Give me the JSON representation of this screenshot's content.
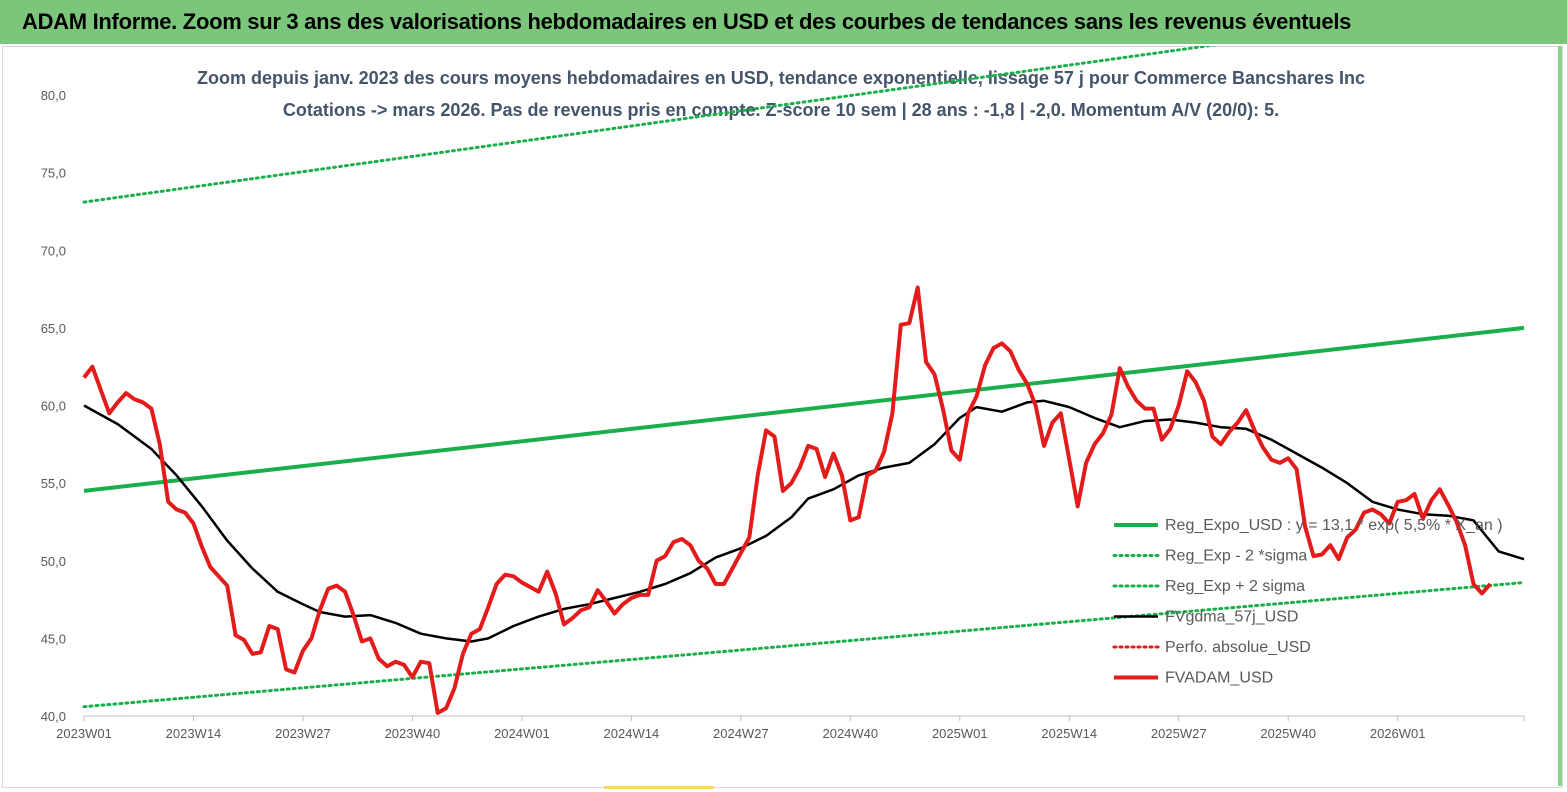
{
  "banner": {
    "title": "ADAM Informe. Zoom sur 3 ans des valorisations hebdomadaires en USD et des courbes de tendances sans les revenus éventuels"
  },
  "chart_data": {
    "type": "line",
    "subtitle_lines": [
      "Zoom depuis janv. 2023 des cours moyens hebdomadaires en USD, tendance exponentielle, lissage 57 j pour Commerce Bancshares Inc",
      "Cotations -> mars 2026. Pas de revenus pris en compte. Z-score 10 sem  | 28 ans : -1,8 | -2,0. Momentum A/V (20/0): 5."
    ],
    "ylim": [
      40,
      80
    ],
    "yticks": [
      "40,0",
      "45,0",
      "50,0",
      "55,0",
      "60,0",
      "65,0",
      "70,0",
      "75,0",
      "80,0"
    ],
    "xticks": [
      "2023W01",
      "2023W14",
      "2023W27",
      "2023W40",
      "2024W01",
      "2024W14",
      "2024W27",
      "2024W40",
      "2025W01",
      "2025W14",
      "2025W27",
      "2025W40",
      "2026W01"
    ],
    "x_range_weeks": [
      0,
      171
    ],
    "grid": "none",
    "legend_position": "right",
    "series": [
      {
        "name": "Reg_Expo_USD : y = 13,1 * exp( 5,5% * X_an )",
        "color": "#1aaf4b",
        "style": "solid-thick",
        "points": [
          [
            0,
            54.5
          ],
          [
            171,
            65.0
          ]
        ]
      },
      {
        "name": "Reg_Exp - 2 *sigma",
        "color": "#1aaf4b",
        "style": "dotted",
        "points": [
          [
            0,
            40.6
          ],
          [
            171,
            48.6
          ]
        ]
      },
      {
        "name": "Reg_Exp + 2 sigma",
        "color": "#1aaf4b",
        "style": "dotted",
        "points": [
          [
            0,
            73.1
          ],
          [
            171,
            86.0
          ]
        ]
      },
      {
        "name": "FVgdma_57j_USD",
        "color": "#000000",
        "style": "solid",
        "points": [
          [
            0,
            60.0
          ],
          [
            4,
            58.8
          ],
          [
            8,
            57.2
          ],
          [
            11,
            55.5
          ],
          [
            14,
            53.5
          ],
          [
            17,
            51.3
          ],
          [
            20,
            49.5
          ],
          [
            23,
            48.0
          ],
          [
            26,
            47.2
          ],
          [
            28,
            46.7
          ],
          [
            31,
            46.4
          ],
          [
            34,
            46.5
          ],
          [
            37,
            46.0
          ],
          [
            40,
            45.3
          ],
          [
            43,
            45.0
          ],
          [
            46,
            44.8
          ],
          [
            48,
            45.0
          ],
          [
            51,
            45.8
          ],
          [
            54,
            46.4
          ],
          [
            57,
            46.9
          ],
          [
            60,
            47.2
          ],
          [
            63,
            47.6
          ],
          [
            66,
            48.0
          ],
          [
            69,
            48.5
          ],
          [
            72,
            49.2
          ],
          [
            75,
            50.2
          ],
          [
            78,
            50.8
          ],
          [
            81,
            51.6
          ],
          [
            84,
            52.8
          ],
          [
            86,
            54.0
          ],
          [
            89,
            54.6
          ],
          [
            92,
            55.5
          ],
          [
            95,
            56.0
          ],
          [
            98,
            56.3
          ],
          [
            101,
            57.5
          ],
          [
            104,
            59.2
          ],
          [
            106,
            59.9
          ],
          [
            109,
            59.6
          ],
          [
            112,
            60.2
          ],
          [
            114,
            60.3
          ],
          [
            117,
            59.9
          ],
          [
            120,
            59.2
          ],
          [
            123,
            58.6
          ],
          [
            126,
            59.0
          ],
          [
            129,
            59.1
          ],
          [
            132,
            58.9
          ],
          [
            135,
            58.6
          ],
          [
            138,
            58.5
          ],
          [
            141,
            57.8
          ],
          [
            144,
            56.9
          ],
          [
            147,
            56.0
          ],
          [
            150,
            55.0
          ],
          [
            153,
            53.8
          ],
          [
            156,
            53.3
          ],
          [
            159,
            53.0
          ],
          [
            162,
            52.9
          ],
          [
            165,
            52.6
          ],
          [
            168,
            50.6
          ],
          [
            171,
            50.1
          ]
        ]
      },
      {
        "name": "Perfo. absolue_USD",
        "color": "#e31b1b",
        "style": "dotted",
        "points": []
      },
      {
        "name": "FVADAM_USD",
        "color": "#e31b1b",
        "style": "solid-thick",
        "points": [
          [
            0,
            61.8
          ],
          [
            1,
            62.5
          ],
          [
            2,
            61.0
          ],
          [
            3,
            59.5
          ],
          [
            4,
            60.2
          ],
          [
            5,
            60.8
          ],
          [
            6,
            60.4
          ],
          [
            7,
            60.2
          ],
          [
            8,
            59.8
          ],
          [
            9,
            57.5
          ],
          [
            10,
            53.8
          ],
          [
            11,
            53.3
          ],
          [
            12,
            53.1
          ],
          [
            13,
            52.4
          ],
          [
            14,
            50.9
          ],
          [
            15,
            49.6
          ],
          [
            16,
            49.0
          ],
          [
            17,
            48.4
          ],
          [
            18,
            45.2
          ],
          [
            19,
            44.9
          ],
          [
            20,
            44.0
          ],
          [
            21,
            44.1
          ],
          [
            22,
            45.8
          ],
          [
            23,
            45.6
          ],
          [
            24,
            43.0
          ],
          [
            25,
            42.8
          ],
          [
            26,
            44.2
          ],
          [
            27,
            45.0
          ],
          [
            28,
            46.8
          ],
          [
            29,
            48.2
          ],
          [
            30,
            48.4
          ],
          [
            31,
            48.0
          ],
          [
            32,
            46.5
          ],
          [
            33,
            44.8
          ],
          [
            34,
            45.0
          ],
          [
            35,
            43.7
          ],
          [
            36,
            43.2
          ],
          [
            37,
            43.5
          ],
          [
            38,
            43.3
          ],
          [
            39,
            42.5
          ],
          [
            40,
            43.5
          ],
          [
            41,
            43.4
          ],
          [
            42,
            40.2
          ],
          [
            43,
            40.5
          ],
          [
            44,
            41.8
          ],
          [
            45,
            44.0
          ],
          [
            46,
            45.3
          ],
          [
            47,
            45.6
          ],
          [
            48,
            47.0
          ],
          [
            49,
            48.5
          ],
          [
            50,
            49.1
          ],
          [
            51,
            49.0
          ],
          [
            52,
            48.6
          ],
          [
            53,
            48.3
          ],
          [
            54,
            48.0
          ],
          [
            55,
            49.3
          ],
          [
            56,
            47.9
          ],
          [
            57,
            45.9
          ],
          [
            58,
            46.3
          ],
          [
            59,
            46.8
          ],
          [
            60,
            47.0
          ],
          [
            61,
            48.1
          ],
          [
            62,
            47.4
          ],
          [
            63,
            46.6
          ],
          [
            64,
            47.2
          ],
          [
            65,
            47.6
          ],
          [
            66,
            47.8
          ],
          [
            67,
            47.8
          ],
          [
            68,
            50.0
          ],
          [
            69,
            50.3
          ],
          [
            70,
            51.2
          ],
          [
            71,
            51.4
          ],
          [
            72,
            51.0
          ],
          [
            73,
            50.0
          ],
          [
            74,
            49.5
          ],
          [
            75,
            48.5
          ],
          [
            76,
            48.5
          ],
          [
            77,
            49.5
          ],
          [
            78,
            50.5
          ],
          [
            79,
            51.5
          ],
          [
            80,
            55.5
          ],
          [
            81,
            58.4
          ],
          [
            82,
            58.0
          ],
          [
            83,
            54.5
          ],
          [
            84,
            55.0
          ],
          [
            85,
            56.0
          ],
          [
            86,
            57.4
          ],
          [
            87,
            57.2
          ],
          [
            88,
            55.4
          ],
          [
            89,
            56.9
          ],
          [
            90,
            55.5
          ],
          [
            91,
            52.6
          ],
          [
            92,
            52.8
          ],
          [
            93,
            55.5
          ],
          [
            94,
            55.8
          ],
          [
            95,
            57.0
          ],
          [
            96,
            59.5
          ],
          [
            97,
            65.2
          ],
          [
            98,
            65.3
          ],
          [
            99,
            67.6
          ],
          [
            100,
            62.8
          ],
          [
            101,
            62.0
          ],
          [
            102,
            59.8
          ],
          [
            103,
            57.1
          ],
          [
            104,
            56.5
          ],
          [
            105,
            59.5
          ],
          [
            106,
            60.6
          ],
          [
            107,
            62.6
          ],
          [
            108,
            63.7
          ],
          [
            109,
            64.0
          ],
          [
            110,
            63.5
          ],
          [
            111,
            62.3
          ],
          [
            112,
            61.4
          ],
          [
            113,
            60.0
          ],
          [
            114,
            57.4
          ],
          [
            115,
            58.9
          ],
          [
            116,
            59.5
          ],
          [
            117,
            56.5
          ],
          [
            118,
            53.5
          ],
          [
            119,
            56.3
          ],
          [
            120,
            57.5
          ],
          [
            121,
            58.2
          ],
          [
            122,
            59.4
          ],
          [
            123,
            62.4
          ],
          [
            124,
            61.2
          ],
          [
            125,
            60.3
          ],
          [
            126,
            59.8
          ],
          [
            127,
            59.8
          ],
          [
            128,
            57.8
          ],
          [
            129,
            58.5
          ],
          [
            130,
            60.0
          ],
          [
            131,
            62.2
          ],
          [
            132,
            61.5
          ],
          [
            133,
            60.3
          ],
          [
            134,
            58.0
          ],
          [
            135,
            57.5
          ],
          [
            136,
            58.3
          ],
          [
            137,
            58.9
          ],
          [
            138,
            59.7
          ],
          [
            139,
            58.4
          ],
          [
            140,
            57.3
          ],
          [
            141,
            56.5
          ],
          [
            142,
            56.3
          ],
          [
            143,
            56.6
          ],
          [
            144,
            55.9
          ],
          [
            145,
            52.2
          ],
          [
            146,
            50.3
          ],
          [
            147,
            50.4
          ],
          [
            148,
            51.0
          ],
          [
            149,
            50.1
          ],
          [
            150,
            51.5
          ],
          [
            151,
            52.0
          ],
          [
            152,
            53.1
          ],
          [
            153,
            53.3
          ],
          [
            154,
            53.0
          ],
          [
            155,
            52.4
          ],
          [
            156,
            53.8
          ],
          [
            157,
            53.9
          ],
          [
            158,
            54.3
          ],
          [
            159,
            52.7
          ],
          [
            160,
            53.9
          ],
          [
            161,
            54.6
          ],
          [
            162,
            53.6
          ],
          [
            163,
            52.5
          ],
          [
            164,
            51.0
          ],
          [
            165,
            48.5
          ],
          [
            166,
            47.9
          ],
          [
            167,
            48.5
          ]
        ]
      }
    ]
  }
}
